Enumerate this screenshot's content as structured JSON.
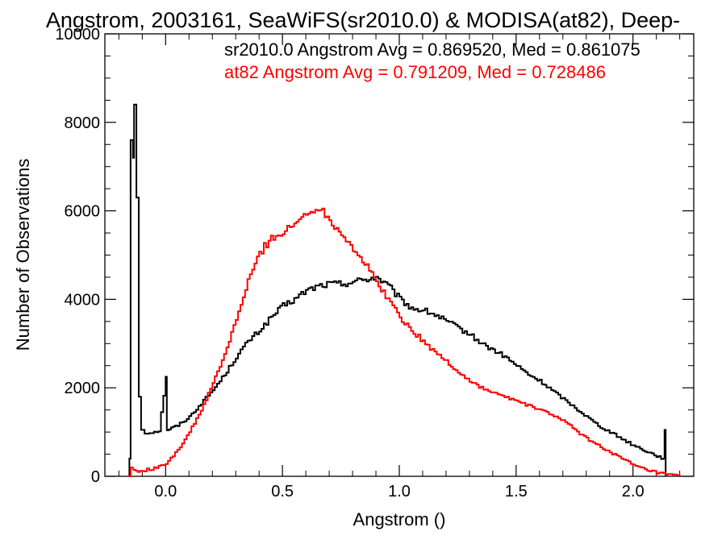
{
  "chart_data": {
    "type": "line",
    "title": "Angstrom, 2003161, SeaWiFS(sr2010.0) & MODISA(at82), Deep-",
    "xlabel": "Angstrom ()",
    "ylabel": "Number of Observations",
    "xlim": [
      -0.26,
      2.26
    ],
    "ylim": [
      0,
      10000
    ],
    "x_ticks": [
      {
        "value": 0.0,
        "label": "0.0"
      },
      {
        "value": 0.5,
        "label": "0.5"
      },
      {
        "value": 1.0,
        "label": "1.0"
      },
      {
        "value": 1.5,
        "label": "1.5"
      },
      {
        "value": 2.0,
        "label": "2.0"
      }
    ],
    "y_ticks": [
      {
        "value": 0,
        "label": "0"
      },
      {
        "value": 2000,
        "label": "2000"
      },
      {
        "value": 4000,
        "label": "4000"
      },
      {
        "value": 6000,
        "label": "6000"
      },
      {
        "value": 8000,
        "label": "8000"
      },
      {
        "value": 10000,
        "label": "10000"
      }
    ],
    "grid": false,
    "annotations": [
      {
        "text": "sr2010.0 Angstrom Avg = 0.869520, Med = 0.861075",
        "color": "#000000"
      },
      {
        "text": "at82 Angstrom Avg = 0.791209, Med = 0.728486",
        "color": "#ff0000"
      }
    ],
    "series": [
      {
        "color": "#000000",
        "points": [
          [
            -0.16,
            0
          ],
          [
            -0.155,
            400
          ],
          [
            -0.15,
            7600
          ],
          [
            -0.14,
            7200
          ],
          [
            -0.135,
            8400
          ],
          [
            -0.125,
            6300
          ],
          [
            -0.115,
            1800
          ],
          [
            -0.105,
            1050
          ],
          [
            -0.09,
            970
          ],
          [
            -0.06,
            1000
          ],
          [
            -0.03,
            1030
          ],
          [
            0.0,
            2250
          ],
          [
            0.005,
            1050
          ],
          [
            0.05,
            1150
          ],
          [
            0.1,
            1350
          ],
          [
            0.15,
            1650
          ],
          [
            0.2,
            1950
          ],
          [
            0.25,
            2300
          ],
          [
            0.3,
            2700
          ],
          [
            0.35,
            3050
          ],
          [
            0.4,
            3300
          ],
          [
            0.45,
            3600
          ],
          [
            0.5,
            3850
          ],
          [
            0.55,
            4000
          ],
          [
            0.6,
            4200
          ],
          [
            0.65,
            4300
          ],
          [
            0.7,
            4350
          ],
          [
            0.75,
            4350
          ],
          [
            0.8,
            4400
          ],
          [
            0.85,
            4450
          ],
          [
            0.9,
            4500
          ],
          [
            0.95,
            4300
          ],
          [
            1.0,
            4000
          ],
          [
            1.05,
            3800
          ],
          [
            1.1,
            3750
          ],
          [
            1.15,
            3650
          ],
          [
            1.2,
            3500
          ],
          [
            1.25,
            3350
          ],
          [
            1.3,
            3200
          ],
          [
            1.35,
            3000
          ],
          [
            1.4,
            2850
          ],
          [
            1.45,
            2700
          ],
          [
            1.5,
            2500
          ],
          [
            1.55,
            2300
          ],
          [
            1.6,
            2150
          ],
          [
            1.65,
            1950
          ],
          [
            1.7,
            1750
          ],
          [
            1.75,
            1550
          ],
          [
            1.8,
            1350
          ],
          [
            1.85,
            1150
          ],
          [
            1.9,
            1000
          ],
          [
            1.95,
            850
          ],
          [
            2.0,
            700
          ],
          [
            2.05,
            580
          ],
          [
            2.1,
            460
          ],
          [
            2.13,
            400
          ],
          [
            2.135,
            1050
          ],
          [
            2.14,
            0
          ]
        ]
      },
      {
        "color": "#ff0000",
        "points": [
          [
            -0.16,
            0
          ],
          [
            -0.15,
            200
          ],
          [
            -0.14,
            150
          ],
          [
            -0.12,
            100
          ],
          [
            -0.1,
            130
          ],
          [
            -0.05,
            180
          ],
          [
            -0.02,
            230
          ],
          [
            0.0,
            300
          ],
          [
            0.05,
            600
          ],
          [
            0.1,
            1000
          ],
          [
            0.15,
            1500
          ],
          [
            0.2,
            2100
          ],
          [
            0.25,
            2750
          ],
          [
            0.3,
            3550
          ],
          [
            0.35,
            4400
          ],
          [
            0.4,
            5050
          ],
          [
            0.45,
            5400
          ],
          [
            0.5,
            5500
          ],
          [
            0.55,
            5700
          ],
          [
            0.6,
            5950
          ],
          [
            0.65,
            6100
          ],
          [
            0.7,
            5800
          ],
          [
            0.75,
            5500
          ],
          [
            0.8,
            5150
          ],
          [
            0.85,
            4800
          ],
          [
            0.9,
            4400
          ],
          [
            0.95,
            4000
          ],
          [
            1.0,
            3600
          ],
          [
            1.05,
            3300
          ],
          [
            1.1,
            3050
          ],
          [
            1.15,
            2800
          ],
          [
            1.2,
            2600
          ],
          [
            1.25,
            2350
          ],
          [
            1.3,
            2150
          ],
          [
            1.35,
            2000
          ],
          [
            1.4,
            1880
          ],
          [
            1.45,
            1800
          ],
          [
            1.5,
            1700
          ],
          [
            1.55,
            1600
          ],
          [
            1.6,
            1500
          ],
          [
            1.65,
            1400
          ],
          [
            1.7,
            1250
          ],
          [
            1.75,
            1050
          ],
          [
            1.8,
            850
          ],
          [
            1.85,
            700
          ],
          [
            1.9,
            550
          ],
          [
            1.95,
            400
          ],
          [
            2.0,
            250
          ],
          [
            2.05,
            150
          ],
          [
            2.1,
            80
          ],
          [
            2.15,
            30
          ],
          [
            2.2,
            10
          ]
        ]
      }
    ]
  }
}
